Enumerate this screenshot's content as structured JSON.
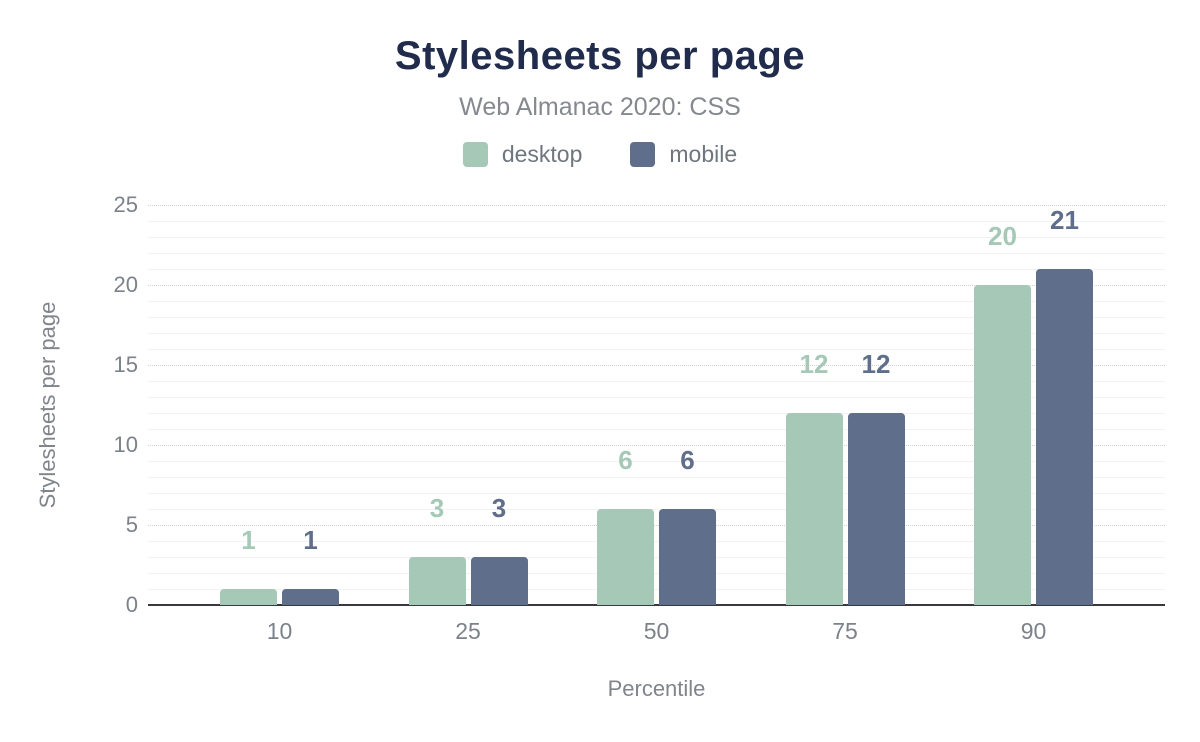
{
  "header": {
    "title": "Stylesheets per page",
    "subtitle": "Web Almanac 2020: CSS"
  },
  "legend": {
    "items": [
      {
        "label": "desktop",
        "color": "#a5c8b7"
      },
      {
        "label": "mobile",
        "color": "#5f6e8b"
      }
    ]
  },
  "chart_data": {
    "type": "bar",
    "title": "Stylesheets per page",
    "subtitle": "Web Almanac 2020: CSS",
    "categories": [
      "10",
      "25",
      "50",
      "75",
      "90"
    ],
    "series": [
      {
        "name": "desktop",
        "color": "#a5c8b7",
        "values": [
          1,
          3,
          6,
          12,
          20
        ]
      },
      {
        "name": "mobile",
        "color": "#5f6e8b",
        "values": [
          1,
          3,
          6,
          12,
          21
        ]
      }
    ],
    "xlabel": "Percentile",
    "ylabel": "Stylesheets per page",
    "ylim": [
      0,
      25
    ],
    "yticks": [
      0,
      5,
      10,
      15,
      20,
      25
    ],
    "minor_grid_step": 1,
    "grid": true,
    "legend_position": "top",
    "data_labels": true,
    "colors": {
      "title": "#212c4c",
      "subtitle_text": "#85898f",
      "axis_text": "#7c828a",
      "axis_line": "#37393c",
      "major_gridline": "#ced2d7",
      "minor_gridline": "#f1f2f4"
    }
  }
}
